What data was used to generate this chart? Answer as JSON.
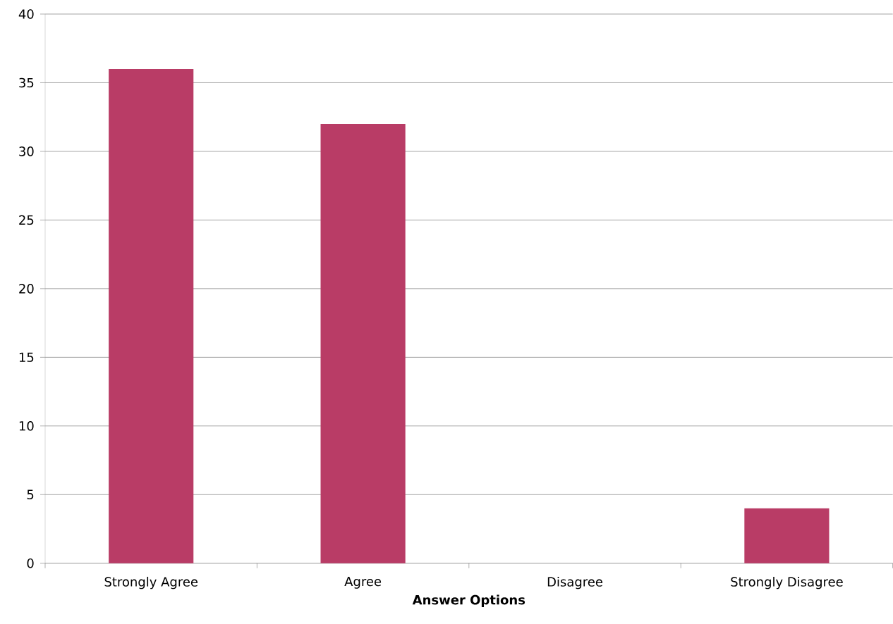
{
  "chart_data": {
    "type": "bar",
    "xlabel": "Answer Options",
    "categories": [
      "Strongly Agree",
      "Agree",
      "Disagree",
      "Strongly Disagree"
    ],
    "values": [
      36,
      32,
      0,
      4
    ],
    "color": "#b93c66",
    "ylim": [
      0,
      40
    ],
    "yticks": [
      0,
      5,
      10,
      15,
      20,
      25,
      30,
      35,
      40
    ],
    "grid": "y"
  }
}
